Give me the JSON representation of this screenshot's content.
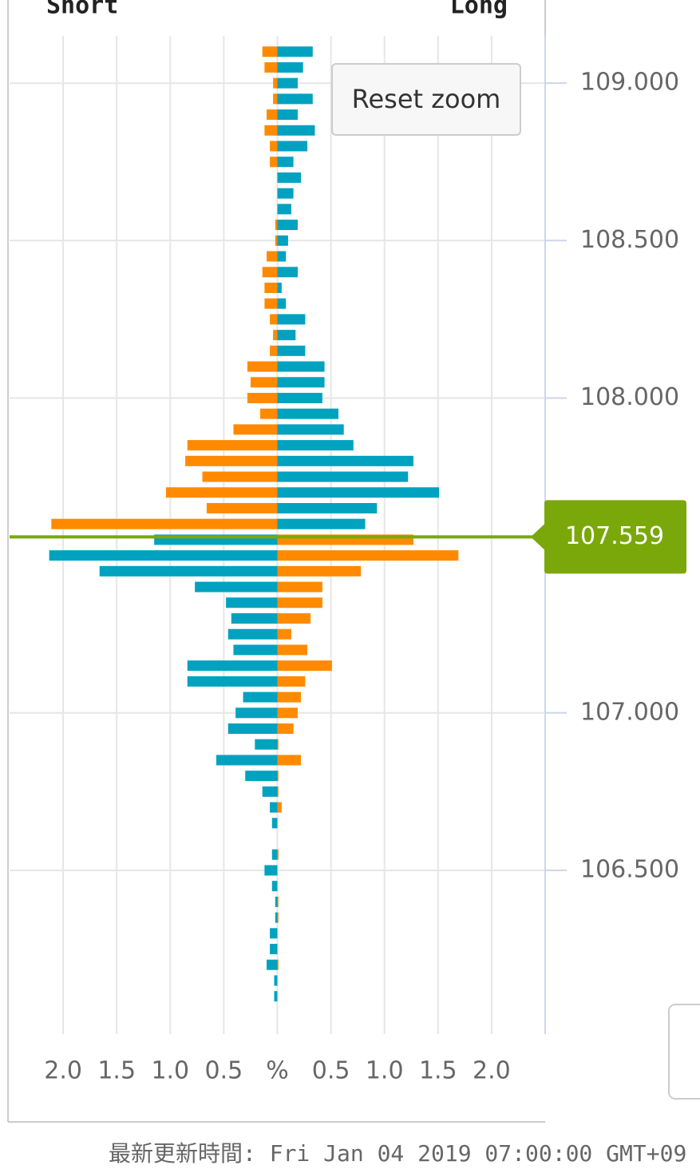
{
  "chart_data": {
    "type": "butterfly-bar",
    "y": [
      109.1,
      109.05,
      109.0,
      108.95,
      108.9,
      108.85,
      108.8,
      108.75,
      108.7,
      108.65,
      108.6,
      108.55,
      108.5,
      108.45,
      108.4,
      108.35,
      108.3,
      108.25,
      108.2,
      108.15,
      108.1,
      108.05,
      108.0,
      107.95,
      107.9,
      107.85,
      107.8,
      107.75,
      107.7,
      107.65,
      107.6,
      107.55,
      107.5,
      107.45,
      107.4,
      107.35,
      107.3,
      107.25,
      107.2,
      107.15,
      107.1,
      107.05,
      107.0,
      106.95,
      106.9,
      106.85,
      106.8,
      106.75,
      106.7,
      106.65,
      106.6,
      106.55,
      106.5,
      106.45,
      106.4,
      106.35,
      106.3,
      106.25,
      106.2,
      106.15,
      106.1
    ],
    "series": [
      {
        "name": "Short",
        "side": "left",
        "color": "#ff8a00",
        "color_below": "#00a2bf",
        "values": [
          0.14,
          0.12,
          0.04,
          0.04,
          0.1,
          0.12,
          0.07,
          0.07,
          0,
          0,
          0,
          0.02,
          0.02,
          0.1,
          0.14,
          0.12,
          0.12,
          0.07,
          0.04,
          0.07,
          0.28,
          0.25,
          0.28,
          0.16,
          0.41,
          0.84,
          0.86,
          0.7,
          1.04,
          0.66,
          2.11,
          1.15,
          2.13,
          1.66,
          0.77,
          0.48,
          0.43,
          0.46,
          0.41,
          0.84,
          0.84,
          0.32,
          0.39,
          0.46,
          0.21,
          0.57,
          0.3,
          0.14,
          0.07,
          0.05,
          0,
          0.05,
          0.12,
          0.05,
          0.02,
          0.02,
          0.07,
          0.07,
          0.1,
          0.03,
          0.03
        ]
      },
      {
        "name": "Long",
        "side": "right",
        "color": "#00a2bf",
        "color_below": "#ff8a00",
        "values": [
          0.33,
          0.24,
          0.19,
          0.33,
          0.19,
          0.35,
          0.28,
          0.15,
          0.22,
          0.15,
          0.13,
          0.19,
          0.1,
          0.08,
          0.19,
          0.04,
          0.08,
          0.26,
          0.17,
          0.26,
          0.44,
          0.44,
          0.42,
          0.57,
          0.62,
          0.71,
          1.27,
          1.22,
          1.51,
          0.93,
          0.82,
          1.27,
          1.69,
          0.78,
          0.42,
          0.42,
          0.31,
          0.13,
          0.28,
          0.51,
          0.26,
          0.22,
          0.19,
          0.15,
          0.01,
          0.22,
          0.01,
          0.01,
          0.04,
          0,
          0,
          0.01,
          0,
          0,
          0.01,
          0.01,
          0,
          0,
          0.01,
          0,
          0
        ]
      }
    ],
    "current_price": 107.559,
    "current_price_color": "#7aa80a",
    "xlim": [
      -2.5,
      2.5
    ],
    "xticks": [
      {
        "value": -2,
        "label": "2.0"
      },
      {
        "value": -1.5,
        "label": "1.5"
      },
      {
        "value": -1,
        "label": "1.0"
      },
      {
        "value": -0.5,
        "label": "0.5"
      },
      {
        "value": 0,
        "label": "%"
      },
      0.5,
      {
        "value": 1,
        "label": "1.0"
      },
      1.5,
      {
        "value": 2,
        "label": "2.0"
      }
    ],
    "ylim": [
      105.98,
      109.15
    ],
    "yticks": [
      {
        "value": 106.5,
        "label": "106.500"
      },
      {
        "value": 107,
        "label": "107.000"
      },
      {
        "value": 108,
        "label": "108.000"
      },
      {
        "value": 108.5,
        "label": "108.500"
      },
      {
        "value": 109,
        "label": "109.000"
      }
    ],
    "grid": true
  },
  "reset_zoom": "Reset zoom",
  "footer": "最新更新時間: Fri Jan 04 2019 07:00:00 GMT+09"
}
